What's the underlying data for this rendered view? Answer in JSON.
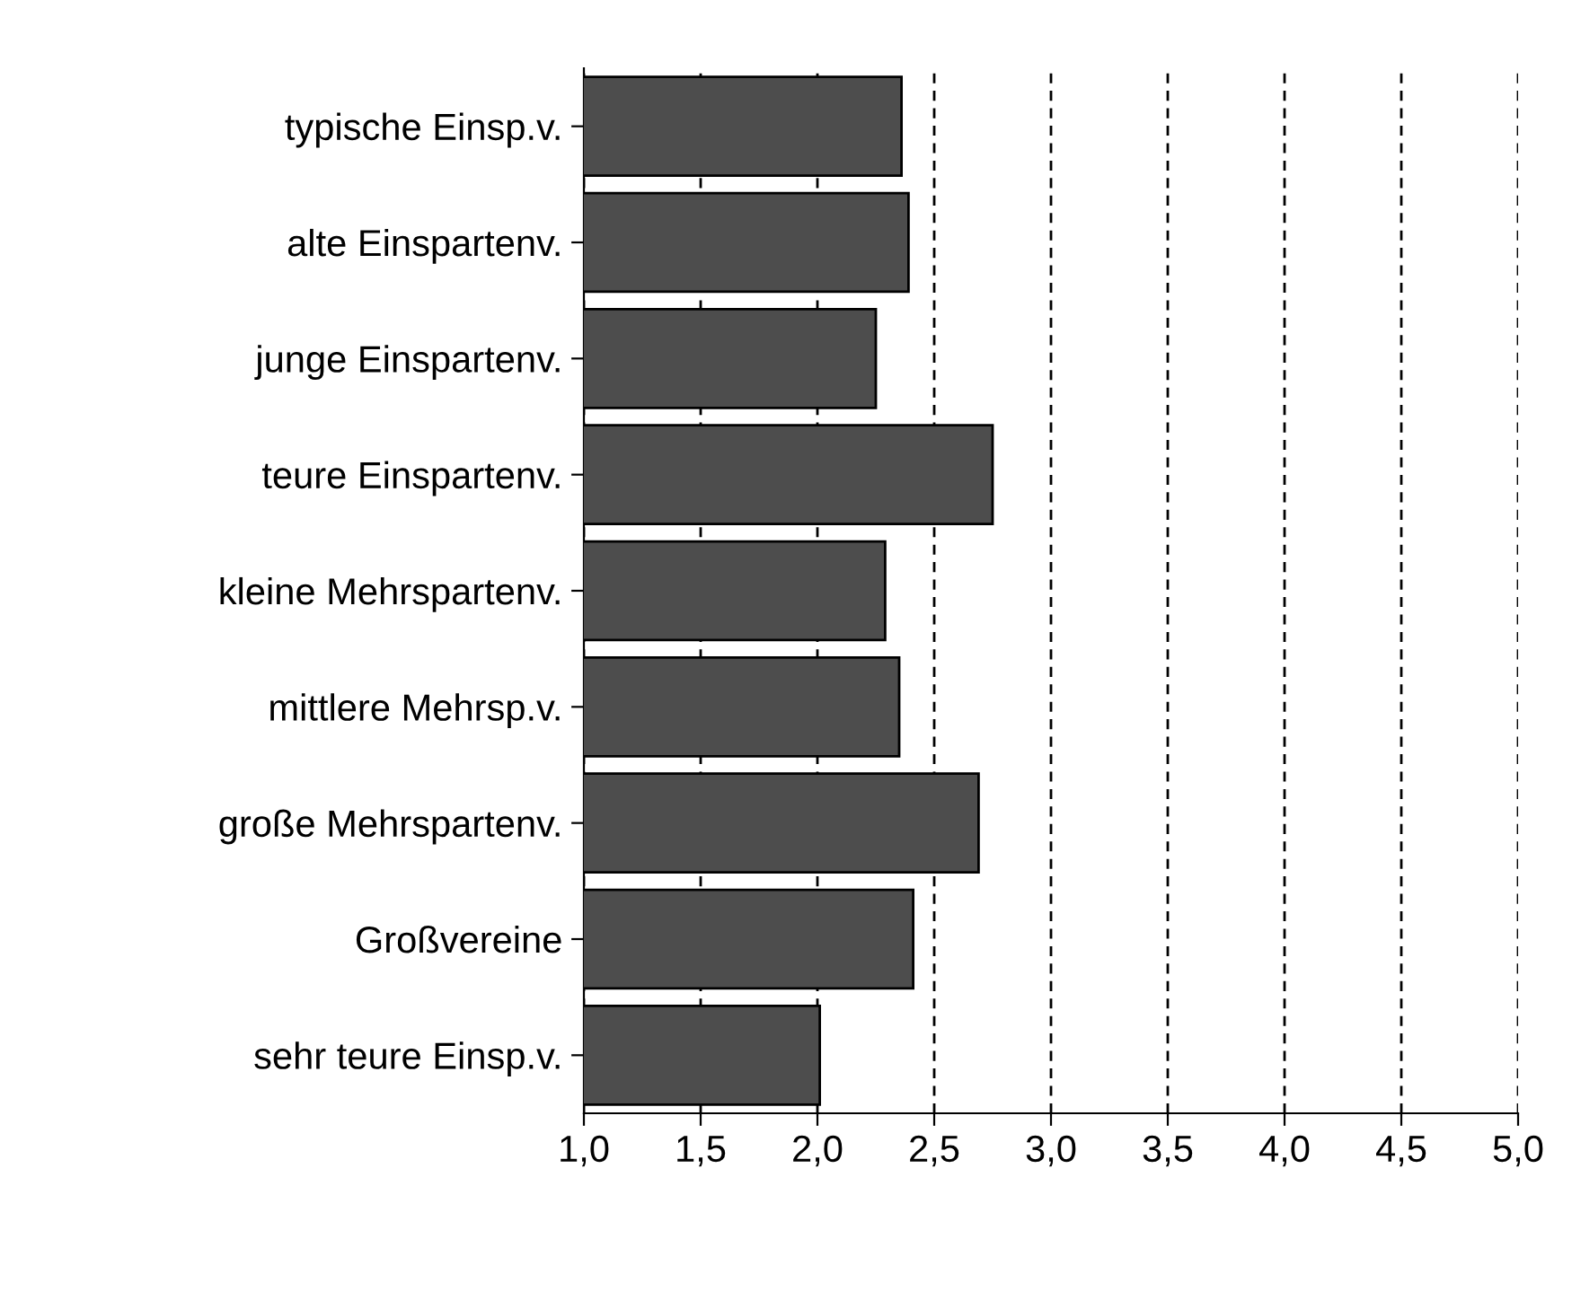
{
  "chart_data": {
    "type": "bar",
    "orientation": "horizontal",
    "categories": [
      "typische Einsp.v.",
      "alte Einspartenv.",
      "junge Einspartenv.",
      "teure Einspartenv.",
      "kleine Mehrspartenv.",
      "mittlere Mehrsp.v.",
      "große Mehrspartenv.",
      "Großvereine",
      "sehr teure Einsp.v."
    ],
    "values": [
      2.36,
      2.39,
      2.25,
      2.75,
      2.29,
      2.35,
      2.69,
      2.41,
      2.01
    ],
    "color": "#4d4d4d",
    "xlim": [
      1.0,
      5.0
    ],
    "xticks": [
      {
        "value": 1.0,
        "label": "1,0"
      },
      {
        "value": 1.5,
        "label": "1,5"
      },
      {
        "value": 2.0,
        "label": "2,0"
      },
      {
        "value": 2.5,
        "label": "2,5"
      },
      {
        "value": 3.0,
        "label": "3,0"
      },
      {
        "value": 3.5,
        "label": "3,5"
      },
      {
        "value": 4.0,
        "label": "4,0"
      },
      {
        "value": 4.5,
        "label": "4,5"
      },
      {
        "value": 5.0,
        "label": "5,0"
      }
    ],
    "grid": "x"
  }
}
